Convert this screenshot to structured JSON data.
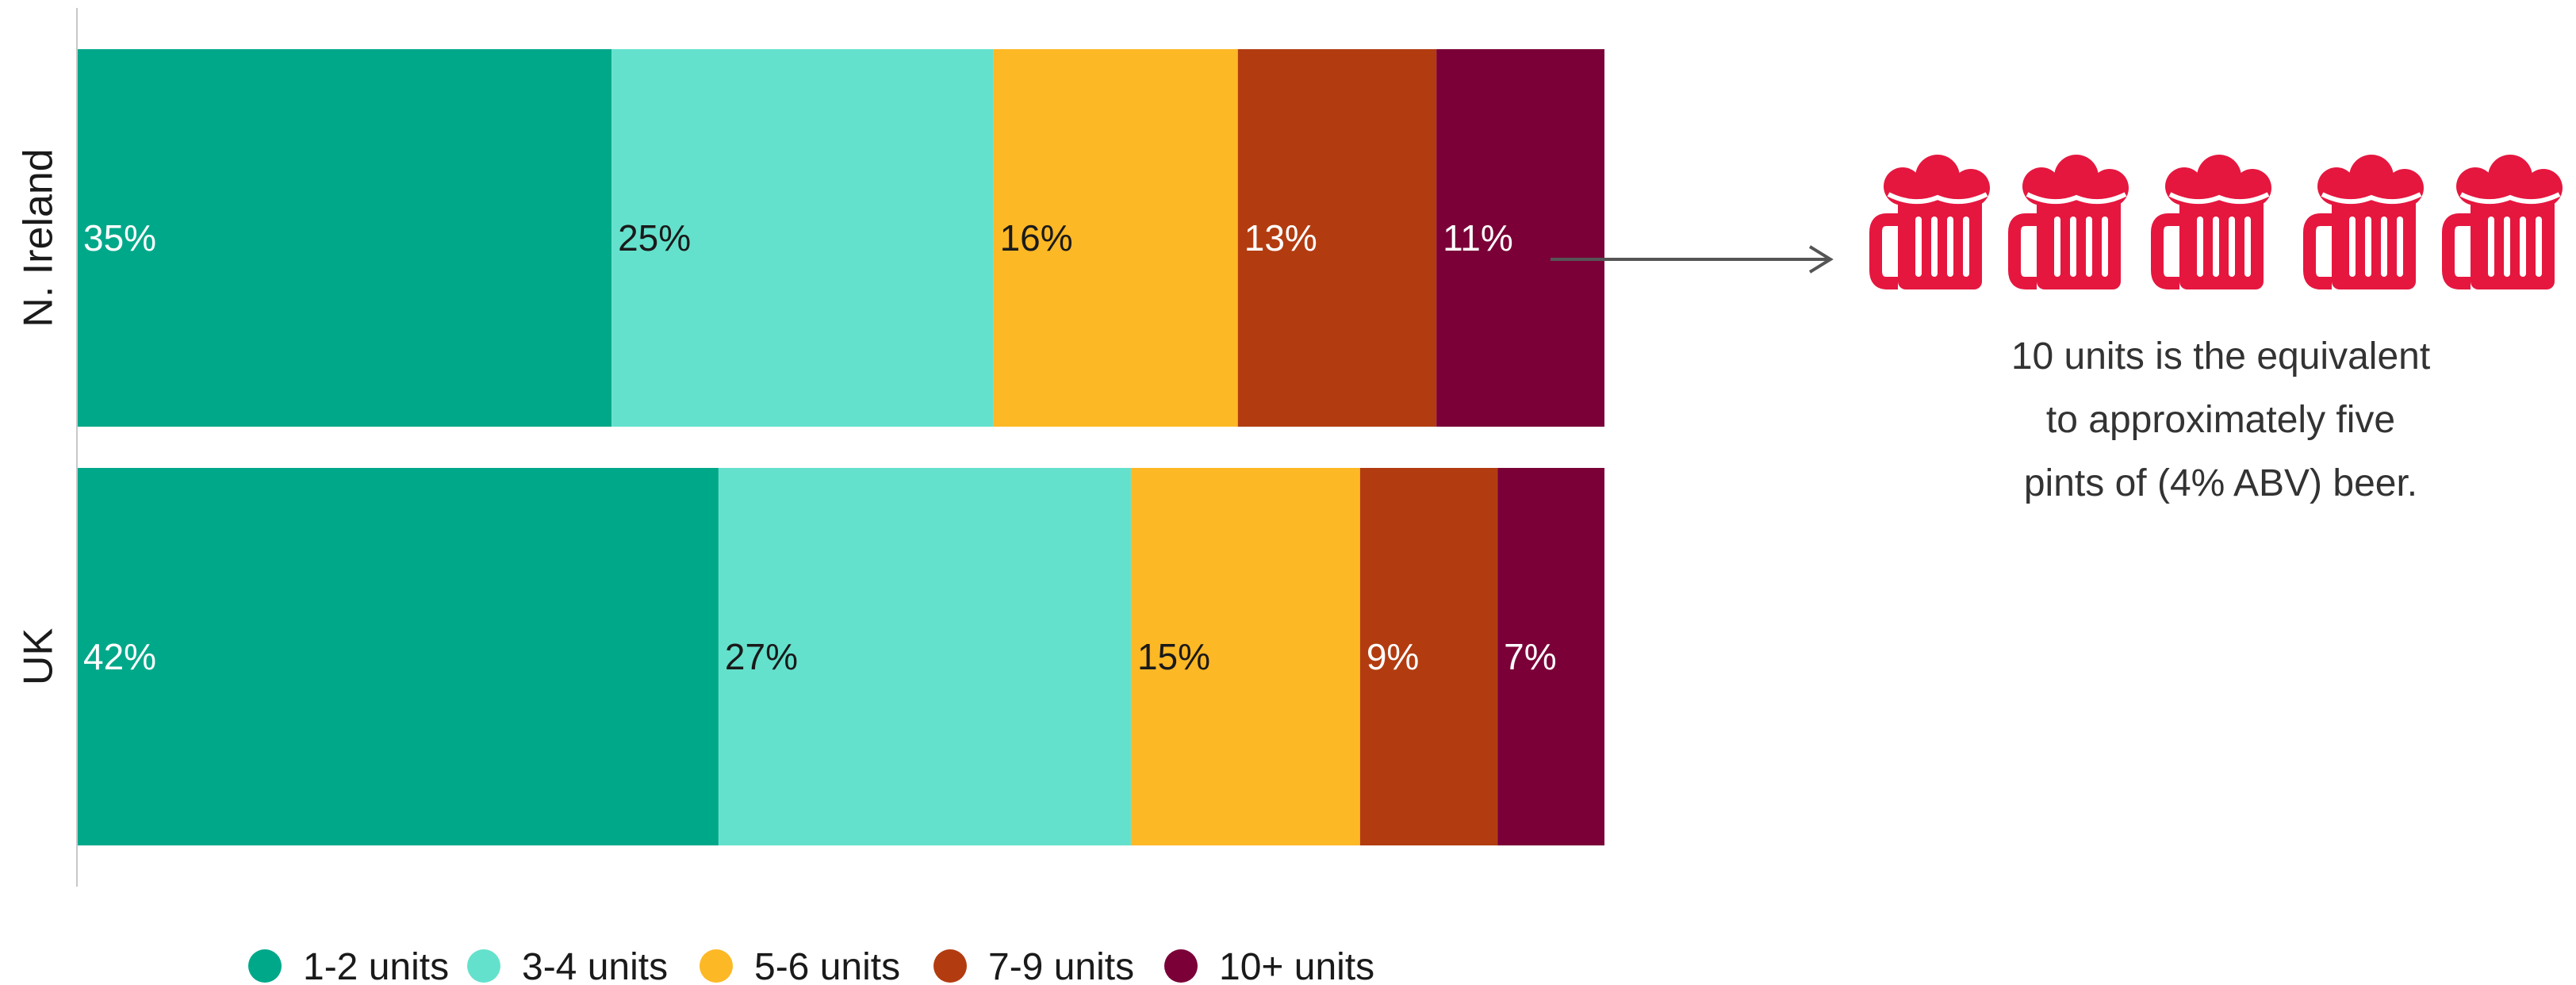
{
  "chart_data": {
    "type": "bar",
    "orientation": "horizontal",
    "stacked": true,
    "normalized": true,
    "categories": [
      "N. Ireland",
      "UK"
    ],
    "series": [
      {
        "name": "1-2 units",
        "values": [
          35,
          42
        ],
        "color": "#00A88A"
      },
      {
        "name": "3-4 units",
        "values": [
          25,
          27
        ],
        "color": "#64E1CC"
      },
      {
        "name": "5-6 units",
        "values": [
          16,
          15
        ],
        "color": "#FDB825"
      },
      {
        "name": "7-9 units",
        "values": [
          13,
          9
        ],
        "color": "#B23C10"
      },
      {
        "name": "10+ units",
        "values": [
          11,
          7
        ],
        "color": "#7A0037"
      }
    ],
    "value_suffix": "%",
    "label_colors": {
      "dark_segments": "#ffffff",
      "light_segments": "#1a1a1a"
    },
    "xlim": [
      0,
      100
    ],
    "grid": false,
    "legend_position": "bottom"
  },
  "annotation": {
    "text_lines": [
      "10 units is the equivalent",
      "to approximately five",
      "pints of (4% ABV) beer."
    ],
    "icon": "beer-mug-icon",
    "icon_count": 5,
    "icon_color": "#E5173F",
    "arrow_color": "#555555"
  }
}
